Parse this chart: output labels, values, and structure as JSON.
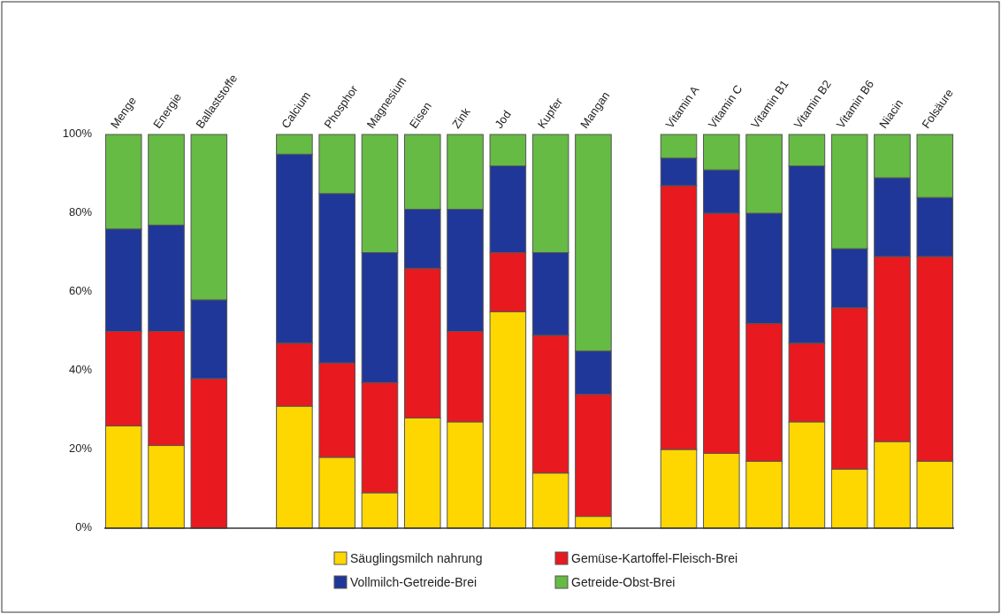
{
  "chart_data": {
    "type": "bar",
    "stacked": true,
    "categories": [
      "Menge",
      "Energie",
      "Ballaststoffe",
      null,
      "Calcium",
      "Phosphor",
      "Magnesium",
      "Eisen",
      "Zink",
      "Jod",
      "Kupfer",
      "Mangan",
      null,
      "Vitamin A",
      "Vitamin C",
      "Vitamin B1",
      "Vitamin B2",
      "Vitamin B6",
      "Niacin",
      "Folsäure"
    ],
    "series": [
      {
        "name": "Säuglingsmilch nahrung",
        "color": "#ffd700",
        "values": [
          26,
          21,
          0,
          null,
          31,
          18,
          9,
          28,
          27,
          55,
          14,
          3,
          null,
          20,
          19,
          17,
          27,
          15,
          22,
          17
        ]
      },
      {
        "name": "Gemüse-Kartoffel-Fleisch-Brei",
        "color": "#e8191f",
        "values": [
          24,
          29,
          38,
          null,
          16,
          24,
          28,
          38,
          23,
          15,
          35,
          31,
          null,
          67,
          61,
          35,
          20,
          41,
          47,
          52
        ]
      },
      {
        "name": "Vollmilch-Getreide-Brei",
        "color": "#1f3799",
        "values": [
          26,
          27,
          20,
          null,
          48,
          43,
          33,
          15,
          31,
          22,
          21,
          11,
          null,
          7,
          11,
          28,
          45,
          15,
          20,
          15
        ]
      },
      {
        "name": "Getreide-Obst-Brei",
        "color": "#66bb44",
        "values": [
          24,
          23,
          42,
          null,
          5,
          15,
          30,
          19,
          19,
          8,
          30,
          55,
          null,
          6,
          9,
          20,
          8,
          29,
          11,
          16
        ]
      }
    ],
    "ylim": [
      0,
      100
    ],
    "yticks": [
      {
        "value": 0,
        "label": "0%"
      },
      {
        "value": 20,
        "label": "20%"
      },
      {
        "value": 40,
        "label": "40%"
      },
      {
        "value": 60,
        "label": "60%"
      },
      {
        "value": 80,
        "label": "80%"
      },
      {
        "value": 100,
        "label": "100%"
      }
    ],
    "grid": false,
    "legend": "bottom"
  }
}
